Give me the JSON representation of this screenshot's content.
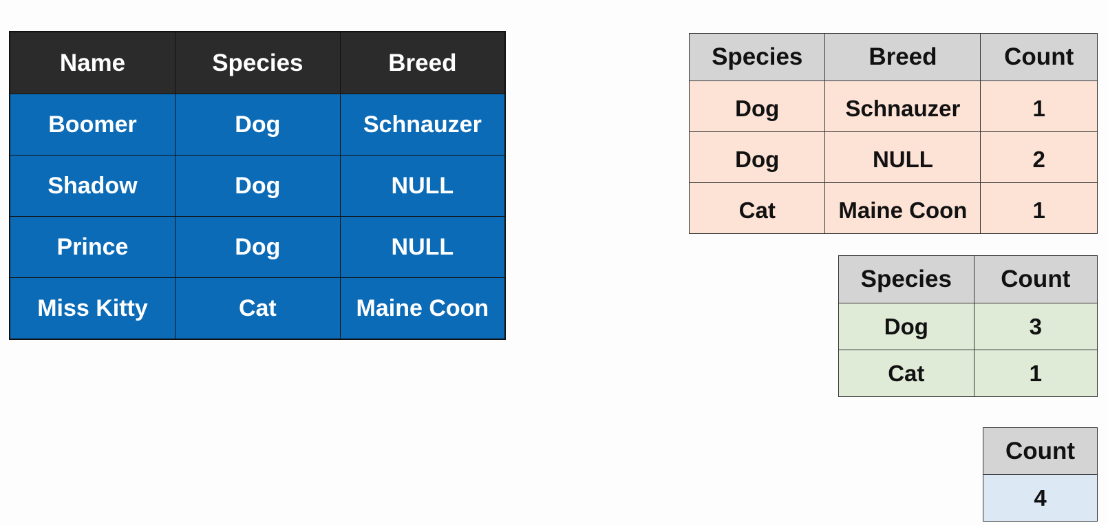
{
  "pets_table": {
    "headers": [
      "Name",
      "Species",
      "Breed"
    ],
    "rows": [
      [
        "Boomer",
        "Dog",
        "Schnauzer"
      ],
      [
        "Shadow",
        "Dog",
        "NULL"
      ],
      [
        "Prince",
        "Dog",
        "NULL"
      ],
      [
        "Miss Kitty",
        "Cat",
        "Maine Coon"
      ]
    ]
  },
  "breed_count_table": {
    "headers": [
      "Species",
      "Breed",
      "Count"
    ],
    "rows": [
      [
        "Dog",
        "Schnauzer",
        "1"
      ],
      [
        "Dog",
        "NULL",
        "2"
      ],
      [
        "Cat",
        "Maine Coon",
        "1"
      ]
    ]
  },
  "species_count_table": {
    "headers": [
      "Species",
      "Count"
    ],
    "rows": [
      [
        "Dog",
        "3"
      ],
      [
        "Cat",
        "1"
      ]
    ]
  },
  "total_count_table": {
    "headers": [
      "Count"
    ],
    "rows": [
      [
        "4"
      ]
    ]
  },
  "colors": {
    "dark_header": "#2b2b2b",
    "blue_cell": "#0b6bb7",
    "gray_header": "#d4d4d4",
    "peach_cell": "#fde2d6",
    "green_cell": "#dfead7",
    "light_blue_cell": "#dce8f4"
  }
}
